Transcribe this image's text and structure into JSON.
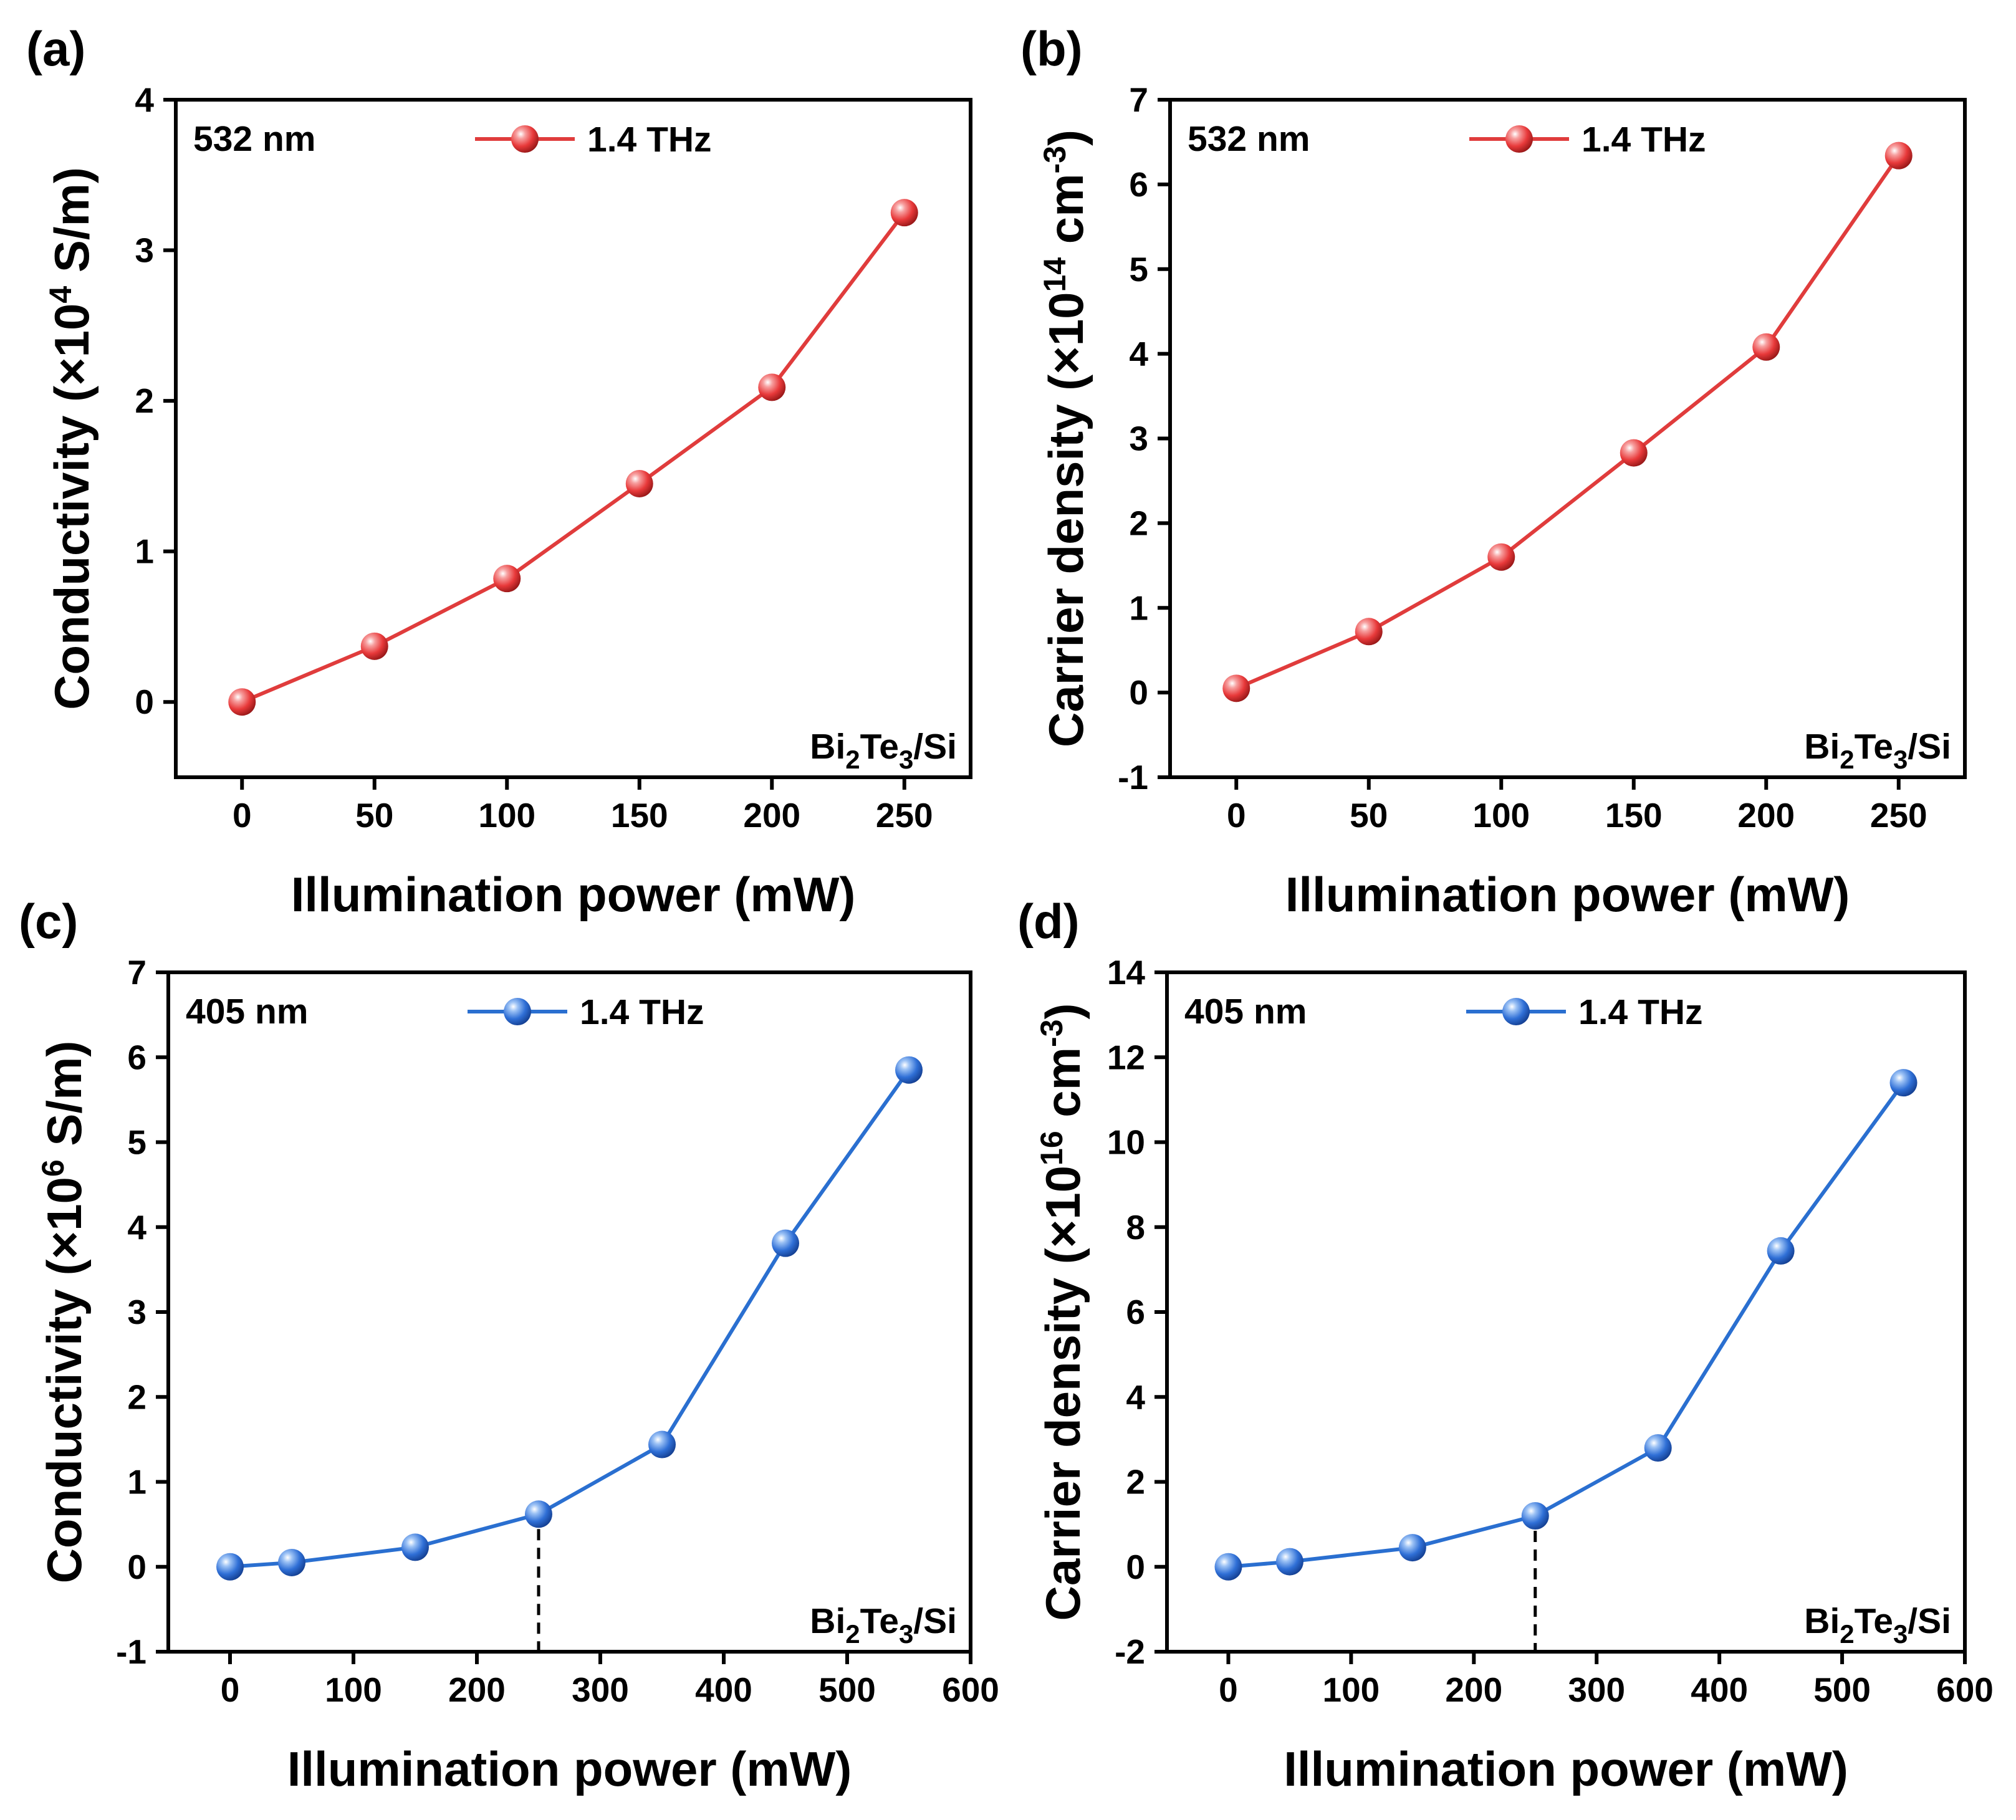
{
  "figure": {
    "panel_count": 4
  },
  "chart_data": [
    {
      "panel": "(a)",
      "type": "line",
      "marker_color": "#e8393a",
      "line_color": "#e03c3c",
      "wavelength_label": "532 nm",
      "legend": "1.4 THz",
      "sample_base": "Bi",
      "sample_sub1": "2",
      "sample_mid": "Te",
      "sample_sub2": "3",
      "sample_tail": "/Si",
      "xlabel": "Illumination power (mW)",
      "ylabel_prefix": "Conductivity (×10",
      "ylabel_sup": "4",
      "ylabel_suffix": " S/m)",
      "ylabel_sup2": "",
      "ylabel_tail": "",
      "xlim": [
        -25,
        275
      ],
      "ylim": [
        -0.5,
        4
      ],
      "xticks": [
        0,
        50,
        100,
        150,
        200,
        250
      ],
      "yticks": [
        0,
        1,
        2,
        3,
        4
      ],
      "series": [
        {
          "name": "1.4 THz",
          "x": [
            0,
            50,
            100,
            150,
            200,
            250
          ],
          "y": [
            0.0,
            0.37,
            0.82,
            1.45,
            2.09,
            3.25
          ]
        }
      ],
      "guide": null
    },
    {
      "panel": "(b)",
      "type": "line",
      "marker_color": "#e8393a",
      "line_color": "#e03c3c",
      "wavelength_label": "532 nm",
      "legend": "1.4 THz",
      "sample_base": "Bi",
      "sample_sub1": "2",
      "sample_mid": "Te",
      "sample_sub2": "3",
      "sample_tail": "/Si",
      "xlabel": "Illumination power (mW)",
      "ylabel_prefix": "Carrier density (×10",
      "ylabel_sup": "14",
      "ylabel_suffix": " cm",
      "ylabel_sup2": "-3",
      "ylabel_tail": ")",
      "xlim": [
        -25,
        275
      ],
      "ylim": [
        -1,
        7
      ],
      "xticks": [
        0,
        50,
        100,
        150,
        200,
        250
      ],
      "yticks": [
        -1,
        0,
        1,
        2,
        3,
        4,
        5,
        6,
        7
      ],
      "series": [
        {
          "name": "1.4 THz",
          "x": [
            0,
            50,
            100,
            150,
            200,
            250
          ],
          "y": [
            0.05,
            0.72,
            1.6,
            2.83,
            4.08,
            6.34
          ]
        }
      ],
      "guide": null
    },
    {
      "panel": "(c)",
      "type": "line",
      "marker_color": "#2f6fd6",
      "line_color": "#2a6fd0",
      "wavelength_label": "405 nm",
      "legend": "1.4 THz",
      "sample_base": "Bi",
      "sample_sub1": "2",
      "sample_mid": "Te",
      "sample_sub2": "3",
      "sample_tail": "/Si",
      "xlabel": "Illumination power (mW)",
      "ylabel_prefix": "Conductivity (×10",
      "ylabel_sup": "6",
      "ylabel_suffix": " S/m)",
      "ylabel_sup2": "",
      "ylabel_tail": "",
      "xlim": [
        -50,
        600
      ],
      "ylim": [
        -1,
        7
      ],
      "xticks": [
        0,
        100,
        200,
        300,
        400,
        500,
        600
      ],
      "yticks": [
        -1,
        0,
        1,
        2,
        3,
        4,
        5,
        6,
        7
      ],
      "series": [
        {
          "name": "1.4 THz",
          "x": [
            0,
            50,
            150,
            250,
            350,
            450,
            550
          ],
          "y": [
            0.0,
            0.05,
            0.23,
            0.62,
            1.44,
            3.81,
            5.85
          ]
        }
      ],
      "guide": {
        "x": 250,
        "y": 0.62
      }
    },
    {
      "panel": "(d)",
      "type": "line",
      "marker_color": "#2f6fd6",
      "line_color": "#2a6fd0",
      "wavelength_label": "405 nm",
      "legend": "1.4 THz",
      "sample_base": "Bi",
      "sample_sub1": "2",
      "sample_mid": "Te",
      "sample_sub2": "3",
      "sample_tail": "/Si",
      "xlabel": "Illumination power (mW)",
      "ylabel_prefix": "Carrier density (×10",
      "ylabel_sup": "16",
      "ylabel_suffix": " cm",
      "ylabel_sup2": "-3",
      "ylabel_tail": ")",
      "xlim": [
        -50,
        600
      ],
      "ylim": [
        -2,
        14
      ],
      "xticks": [
        0,
        100,
        200,
        300,
        400,
        500,
        600
      ],
      "yticks": [
        -2,
        0,
        2,
        4,
        6,
        8,
        10,
        12,
        14
      ],
      "series": [
        {
          "name": "1.4 THz",
          "x": [
            0,
            50,
            150,
            250,
            350,
            450,
            550
          ],
          "y": [
            0.0,
            0.12,
            0.45,
            1.2,
            2.8,
            7.44,
            11.4
          ]
        }
      ],
      "guide": {
        "x": 250,
        "y": 1.2
      }
    }
  ]
}
